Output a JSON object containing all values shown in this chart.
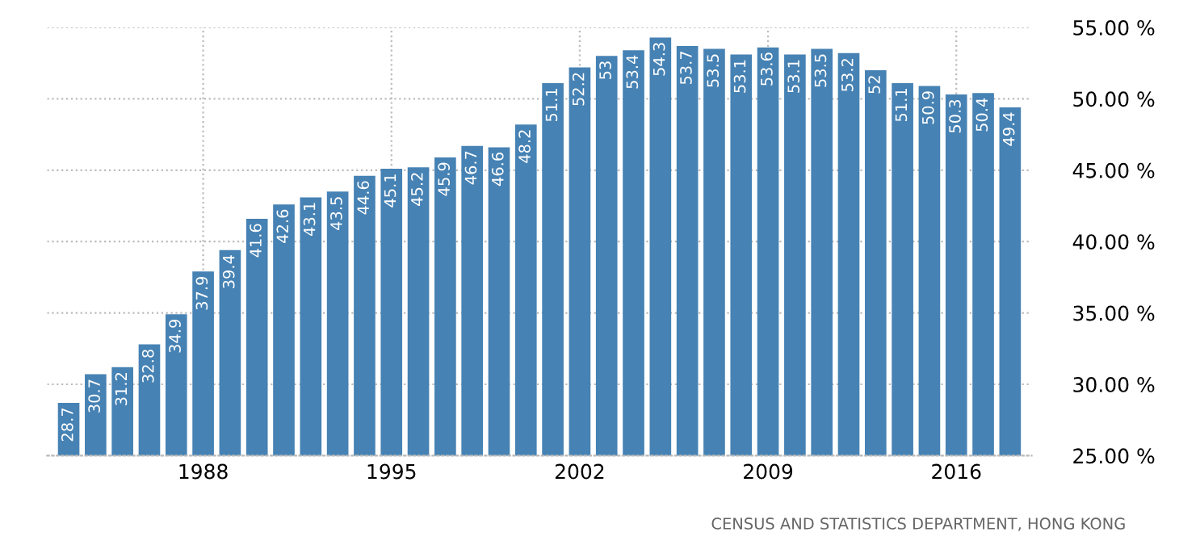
{
  "chart_data": {
    "type": "bar",
    "color": "#4682b4",
    "x": [
      1983,
      1984,
      1985,
      1986,
      1987,
      1988,
      1989,
      1990,
      1991,
      1992,
      1993,
      1994,
      1995,
      1996,
      1997,
      1998,
      1999,
      2000,
      2001,
      2002,
      2003,
      2004,
      2005,
      2006,
      2007,
      2008,
      2009,
      2010,
      2011,
      2012,
      2013,
      2014,
      2015,
      2016,
      2017,
      2018
    ],
    "values": [
      28.7,
      30.7,
      31.2,
      32.8,
      34.9,
      37.9,
      39.4,
      41.6,
      42.6,
      43.1,
      43.5,
      44.6,
      45.1,
      45.2,
      45.9,
      46.7,
      46.6,
      48.2,
      51.1,
      52.2,
      53,
      53.4,
      54.3,
      53.7,
      53.5,
      53.1,
      53.6,
      53.1,
      53.5,
      53.2,
      52,
      51.1,
      50.9,
      50.3,
      50.4,
      49.4
    ],
    "data_labels": true,
    "xlim": [
      1982.2,
      2018.8
    ],
    "xticks": [
      1988,
      1995,
      2002,
      2009,
      2016
    ],
    "ylim": [
      25,
      55
    ],
    "yticks": [
      {
        "value": 25,
        "label": "25.00 %"
      },
      {
        "value": 30,
        "label": "30.00 %"
      },
      {
        "value": 35,
        "label": "35.00 %"
      },
      {
        "value": 40,
        "label": "40.00 %"
      },
      {
        "value": 45,
        "label": "45.00 %"
      },
      {
        "value": 50,
        "label": "50.00 %"
      },
      {
        "value": 55,
        "label": "55.00 %"
      }
    ],
    "grid": true,
    "annotations": [
      "CENSUS AND STATISTICS DEPARTMENT, HONG KONG"
    ]
  }
}
